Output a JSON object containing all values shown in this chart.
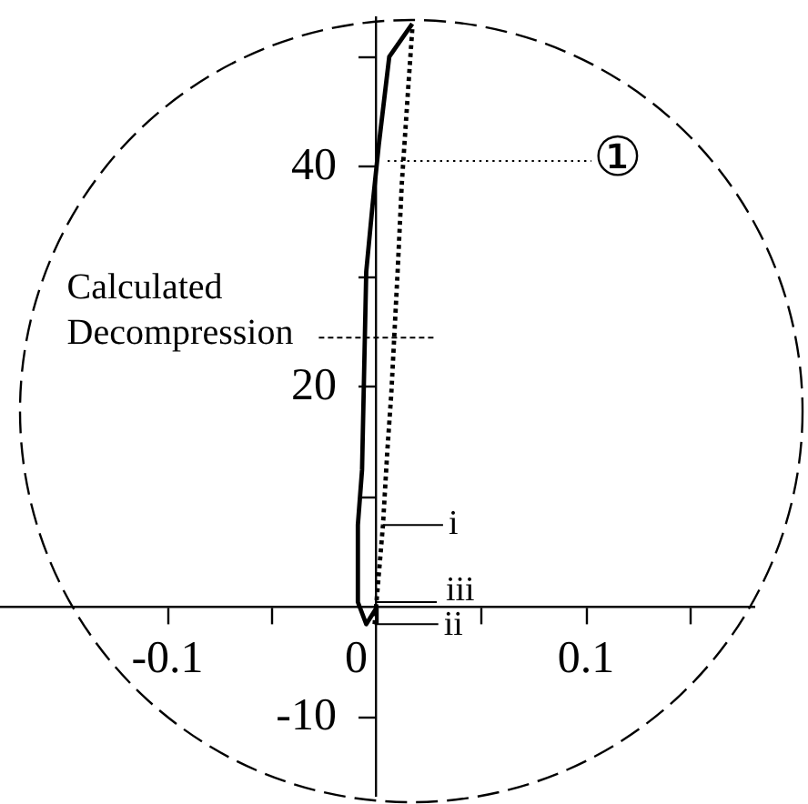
{
  "chart_data": {
    "type": "line",
    "xlim": [
      -0.18,
      0.18
    ],
    "xticks": [
      -0.1,
      {
        "value": -0.05,
        "label": null
      },
      0,
      {
        "value": 0.05,
        "label": null
      },
      0.1,
      {
        "value": 0.15,
        "label": null
      }
    ],
    "ylim": [
      -17,
      53.5
    ],
    "yticks": [
      -10,
      {
        "value": 10,
        "label": null
      },
      20,
      {
        "value": 30,
        "label": null
      },
      40,
      {
        "value": 50,
        "label": null
      }
    ],
    "series": [
      {
        "color": "#000000",
        "line_style": "solid",
        "x": [
          0,
          -0.005,
          -0.009,
          -0.009,
          -0.007,
          -0.005,
          -0.002,
          0.001,
          0.006,
          0.017
        ],
        "values": [
          0,
          -1.5,
          0.5,
          7.5,
          12.5,
          30.5,
          36.5,
          42,
          50,
          53
        ]
      },
      {
        "color": "#000000",
        "line_style": "dotted",
        "x": [
          -0.001,
          0.003,
          0.005,
          0.007,
          0.01,
          0.012,
          0.015,
          0.017
        ],
        "values": [
          -1.5,
          7.5,
          14,
          19.5,
          30.5,
          38.5,
          47,
          52.5
        ]
      }
    ],
    "annotations": [
      "①",
      {
        "text": "Calculated Decompression",
        "x": 0.008,
        "y": 24.5
      },
      {
        "text": "i",
        "x": 0.003,
        "y": 7.5
      },
      {
        "text": "iii",
        "x": 0,
        "y": 0.5
      },
      {
        "text": "ii",
        "x": -0.001,
        "y": -1.5
      }
    ]
  }
}
